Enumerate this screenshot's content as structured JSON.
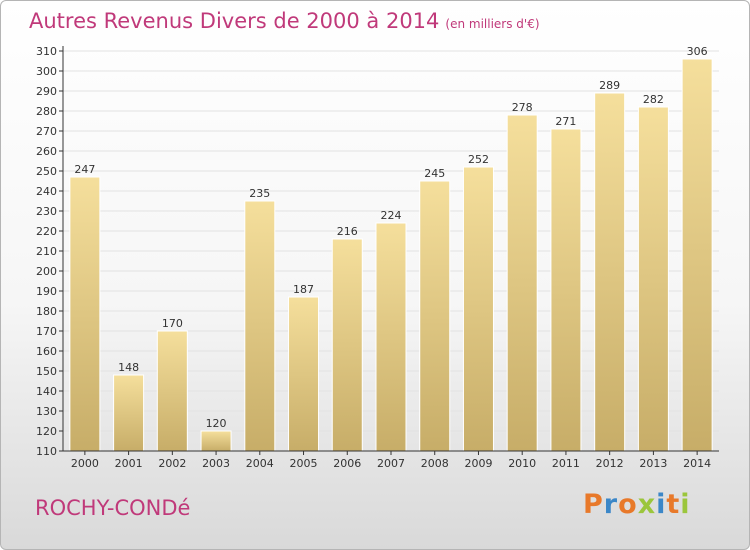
{
  "title": "Autres Revenus Divers de 2000 à 2014",
  "title_unit": "(en milliers d'€)",
  "footer": {
    "town": "ROCHY-CONDé",
    "brand": "Proxiti"
  },
  "colors": {
    "title": "#c0397a",
    "bar_light": "#f5df9c",
    "bar_dark": "#c7ad68",
    "bar_border": "#ffffff",
    "axis": "#333333",
    "grid": "#e2e2e2",
    "brand_letters": [
      "#e8792a",
      "#3b87c8",
      "#e8792a",
      "#9bc63c",
      "#3b87c8",
      "#e8792a",
      "#9bc63c"
    ]
  },
  "chart_data": {
    "type": "bar",
    "title": "Autres Revenus Divers de 2000 à 2014",
    "subtitle": "(en milliers d'€)",
    "xlabel": "",
    "ylabel": "",
    "categories": [
      "2000",
      "2001",
      "2002",
      "2003",
      "2004",
      "2005",
      "2006",
      "2007",
      "2008",
      "2009",
      "2010",
      "2011",
      "2012",
      "2013",
      "2014"
    ],
    "values": [
      247,
      148,
      170,
      120,
      235,
      187,
      216,
      224,
      245,
      252,
      278,
      271,
      289,
      282,
      306
    ],
    "ylim": [
      110,
      310
    ],
    "ytick_step": 10,
    "grid": true,
    "legend": "none"
  }
}
